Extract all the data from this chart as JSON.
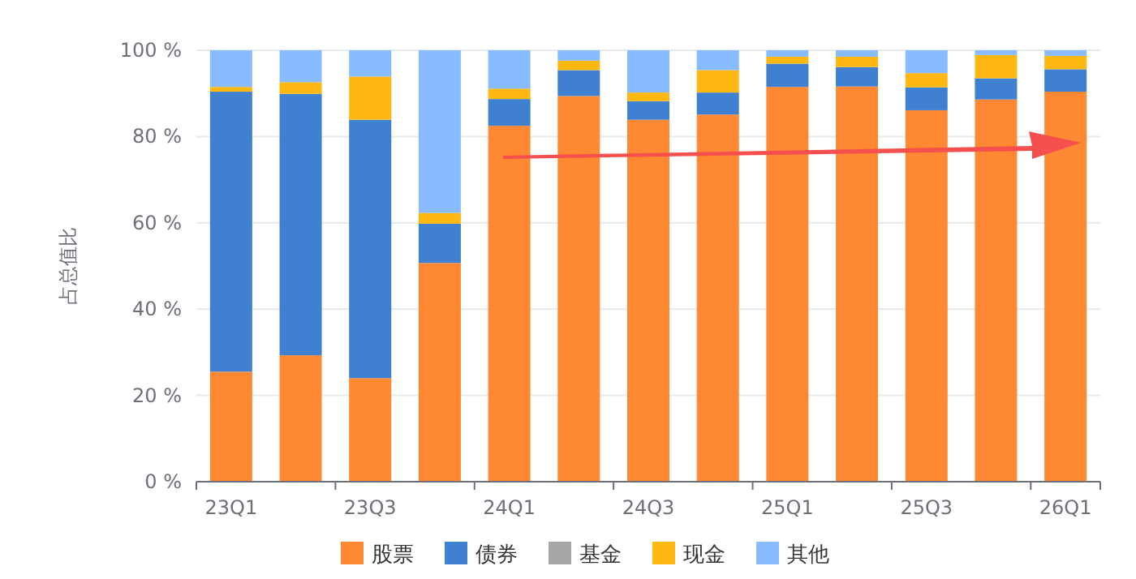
{
  "chart_data": {
    "type": "bar",
    "stacked": true,
    "ylabel": "占总值比",
    "categories": [
      "23Q1",
      null,
      "23Q3",
      null,
      "24Q1",
      null,
      "24Q3",
      null,
      "25Q1",
      null,
      "25Q3",
      null,
      "26Q1"
    ],
    "series": [
      {
        "name": "股票",
        "color": "#ff8833",
        "values": [
          25.5,
          29.3,
          24.0,
          50.7,
          82.5,
          89.4,
          83.9,
          85.1,
          91.5,
          91.6,
          86.1,
          88.6,
          90.4
        ]
      },
      {
        "name": "债券",
        "color": "#4080d0",
        "values": [
          64.9,
          60.6,
          59.9,
          9.1,
          6.2,
          6.0,
          4.3,
          5.1,
          5.4,
          4.5,
          5.3,
          4.9,
          5.2
        ]
      },
      {
        "name": "基金",
        "color": "#a6a6a6",
        "values": [
          0,
          0,
          0,
          0,
          0,
          0,
          0,
          0,
          0,
          0,
          0,
          0,
          0
        ]
      },
      {
        "name": "现金",
        "color": "#ffb711",
        "values": [
          1.1,
          2.7,
          10.0,
          2.5,
          2.4,
          2.2,
          2.0,
          5.2,
          1.6,
          2.4,
          3.3,
          5.4,
          3.1
        ]
      },
      {
        "name": "其他",
        "color": "#88bbff",
        "values": [
          8.5,
          7.4,
          6.1,
          37.7,
          8.9,
          2.4,
          9.8,
          4.6,
          1.5,
          1.5,
          5.3,
          1.1,
          1.3
        ]
      }
    ],
    "ylim": [
      0,
      100
    ],
    "yticks": [
      {
        "value": 0,
        "label": "0 %"
      },
      {
        "value": 20,
        "label": "20 %"
      },
      {
        "value": 40,
        "label": "40 %"
      },
      {
        "value": 60,
        "label": "60 %"
      },
      {
        "value": 80,
        "label": "80 %"
      },
      {
        "value": 100,
        "label": "100 %"
      }
    ],
    "grid": "y",
    "legend": "bottom"
  }
}
